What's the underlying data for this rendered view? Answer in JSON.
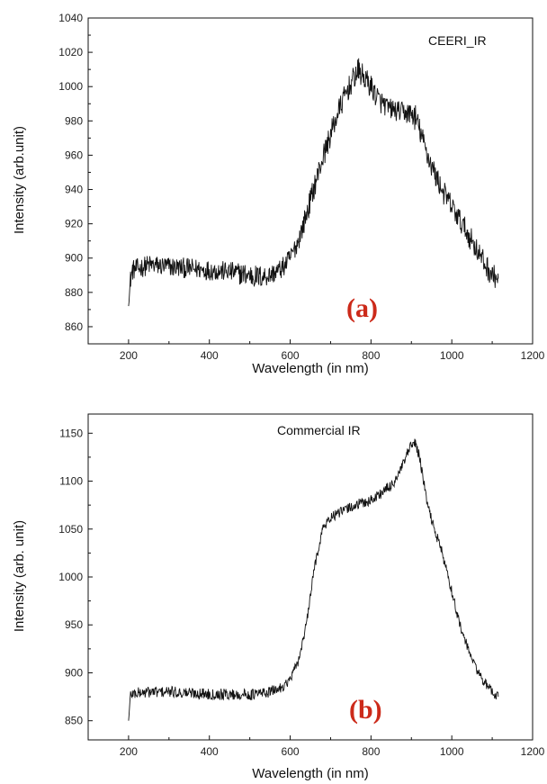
{
  "chart_data": [
    {
      "type": "line",
      "panel_label": "(a)",
      "annotation": "CEERI_IR",
      "xlabel": "Wavelength (in nm)",
      "ylabel": "Intensity (arb.unit)",
      "xlim": [
        100,
        1200
      ],
      "ylim": [
        850,
        1040
      ],
      "xticks": [
        200,
        400,
        600,
        800,
        1000,
        1200
      ],
      "yticks": [
        860,
        880,
        900,
        920,
        940,
        960,
        980,
        1000,
        1020,
        1040
      ],
      "xtick_labels": [
        "200",
        "400",
        "600",
        "800",
        "1000",
        "1200"
      ],
      "ytick_labels": [
        "860",
        "880",
        "900",
        "920",
        "940",
        "960",
        "980",
        "1000",
        "1020",
        "1040"
      ],
      "line_color": "#111111",
      "series": [
        {
          "x": [
            200,
            205,
            210,
            250,
            300,
            350,
            400,
            450,
            500,
            520,
            550,
            580,
            600,
            620,
            640,
            660,
            680,
            700,
            720,
            740,
            760,
            770,
            780,
            800,
            820,
            840,
            860,
            880,
            900,
            910,
            920,
            940,
            960,
            980,
            1000,
            1020,
            1040,
            1060,
            1080,
            1100,
            1115
          ],
          "y": [
            872,
            888,
            893,
            896,
            895,
            894,
            893,
            892,
            890,
            889,
            890,
            894,
            900,
            910,
            925,
            942,
            958,
            972,
            986,
            997,
            1006,
            1009,
            1006,
            1000,
            992,
            988,
            986,
            985,
            984,
            982,
            975,
            960,
            948,
            938,
            930,
            922,
            914,
            906,
            897,
            890,
            888
          ],
          "noise": [
            0,
            6,
            6,
            6,
            6,
            6,
            6,
            6,
            7,
            7,
            6,
            6,
            6,
            6,
            7,
            7,
            7,
            7,
            7,
            7,
            7,
            8,
            7,
            7,
            7,
            6,
            6,
            6,
            7,
            8,
            7,
            7,
            7,
            7,
            7,
            7,
            7,
            7,
            7,
            7,
            6
          ]
        }
      ]
    },
    {
      "type": "line",
      "panel_label": "(b)",
      "annotation": "Commercial IR",
      "xlabel": "Wavelength (in nm)",
      "ylabel": "Intensity (arb. unit)",
      "xlim": [
        100,
        1200
      ],
      "ylim": [
        830,
        1170
      ],
      "xticks": [
        200,
        400,
        600,
        800,
        1000,
        1200
      ],
      "yticks": [
        850,
        900,
        950,
        1000,
        1050,
        1100,
        1150
      ],
      "xtick_labels": [
        "200",
        "400",
        "600",
        "800",
        "1000",
        "1200"
      ],
      "ytick_labels": [
        "850",
        "900",
        "950",
        "1000",
        "1050",
        "1100",
        "1150"
      ],
      "line_color": "#111111",
      "series": [
        {
          "x": [
            200,
            205,
            250,
            300,
            400,
            500,
            550,
            580,
            600,
            620,
            640,
            660,
            680,
            700,
            750,
            800,
            850,
            870,
            890,
            900,
            910,
            920,
            940,
            960,
            970,
            980,
            1000,
            1020,
            1040,
            1060,
            1080,
            1100,
            1115
          ],
          "y": [
            850,
            878,
            880,
            880,
            878,
            877,
            880,
            885,
            893,
            912,
            950,
            1010,
            1050,
            1062,
            1073,
            1080,
            1095,
            1108,
            1128,
            1137,
            1140,
            1125,
            1075,
            1045,
            1035,
            1018,
            985,
            950,
            925,
            905,
            890,
            880,
            875
          ],
          "noise": [
            0,
            6,
            6,
            6,
            6,
            6,
            6,
            5,
            5,
            5,
            5,
            5,
            5,
            5,
            6,
            6,
            6,
            6,
            6,
            6,
            6,
            6,
            5,
            5,
            5,
            5,
            5,
            5,
            5,
            5,
            5,
            5,
            5
          ]
        }
      ]
    }
  ]
}
